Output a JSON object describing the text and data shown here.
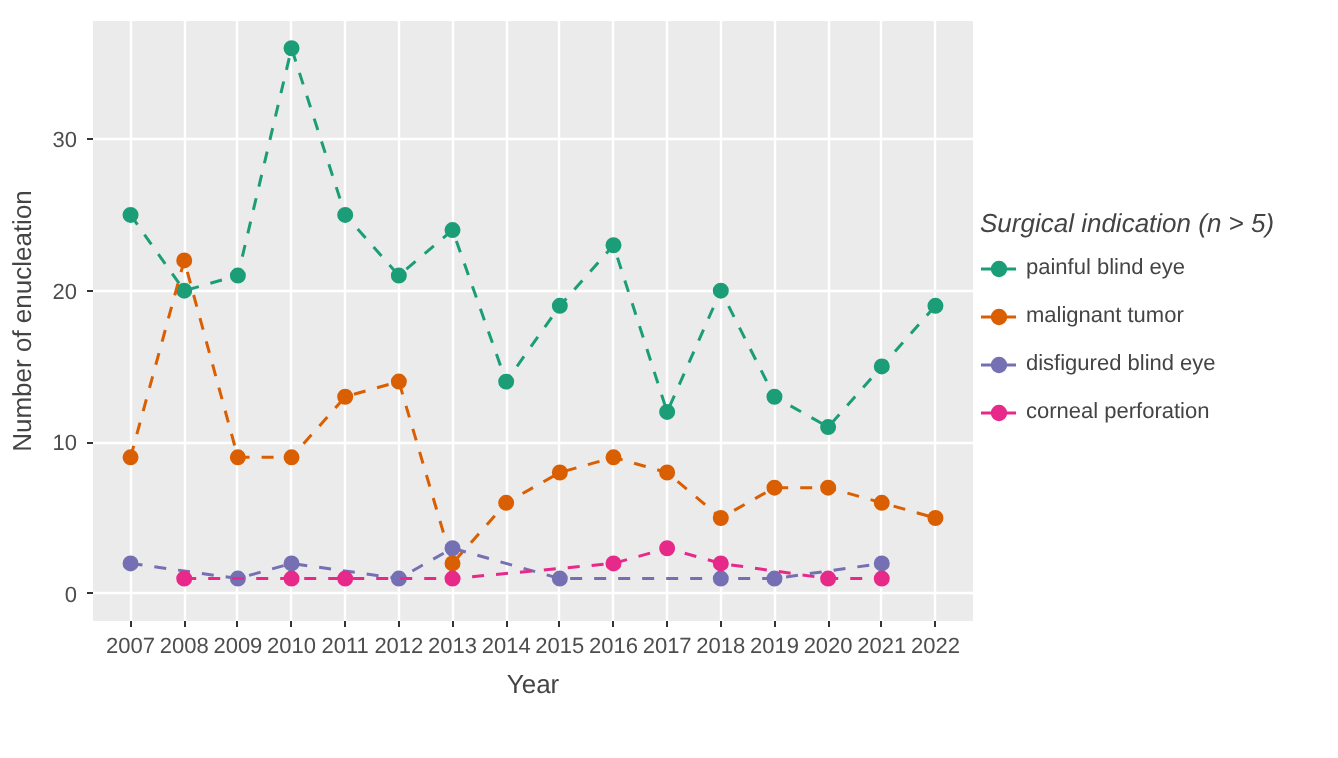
{
  "chart_data": {
    "type": "line",
    "xlabel": "Year",
    "ylabel": "Number of enucleation",
    "legend_title": "Surgical indication (n > 5)",
    "legend": "right",
    "grid": true,
    "marker": "circle",
    "line_style": "dashed",
    "xlim": [
      2006.3,
      2022.7
    ],
    "xticks": [
      2007,
      2008,
      2009,
      2010,
      2011,
      2012,
      2013,
      2014,
      2015,
      2016,
      2017,
      2018,
      2019,
      2020,
      2021,
      2022
    ],
    "ylim": [
      -1.8,
      37.8
    ],
    "yticks": [
      0,
      10,
      20,
      30
    ],
    "series": [
      {
        "name": "painful blind eye",
        "color": "#1b9e77",
        "x": [
          2007,
          2008,
          2009,
          2010,
          2011,
          2012,
          2013,
          2014,
          2015,
          2016,
          2017,
          2018,
          2019,
          2020,
          2021,
          2022
        ],
        "values": [
          25,
          20,
          21,
          36,
          25,
          21,
          24,
          14,
          19,
          23,
          12,
          20,
          13,
          11,
          15,
          19
        ]
      },
      {
        "name": "malignant tumor",
        "color": "#d95f02",
        "x": [
          2007,
          2008,
          2009,
          2010,
          2011,
          2012,
          2013,
          2014,
          2015,
          2016,
          2017,
          2018,
          2019,
          2020,
          2021,
          2022
        ],
        "values": [
          9,
          22,
          9,
          9,
          13,
          14,
          2,
          6,
          8,
          9,
          8,
          5,
          7,
          7,
          6,
          5
        ]
      },
      {
        "name": "disfigured blind eye",
        "color": "#7570b3",
        "x": [
          2007,
          2009,
          2010,
          2012,
          2013,
          2015,
          2018,
          2019,
          2021
        ],
        "values": [
          2,
          1,
          2,
          1,
          3,
          1,
          1,
          1,
          2
        ]
      },
      {
        "name": "corneal perforation",
        "color": "#e7298a",
        "x": [
          2008,
          2010,
          2011,
          2013,
          2016,
          2017,
          2018,
          2020,
          2021
        ],
        "values": [
          1,
          1,
          1,
          1,
          2,
          3,
          2,
          1,
          1
        ]
      }
    ]
  }
}
